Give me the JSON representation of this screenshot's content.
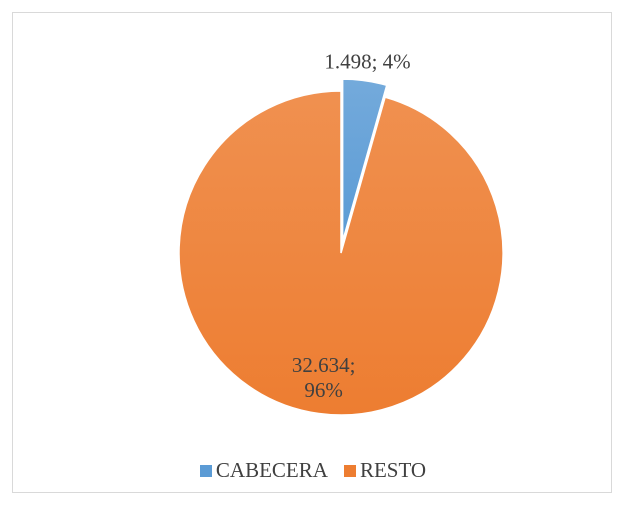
{
  "chart_data": {
    "type": "pie",
    "categories": [
      "CABECERA",
      "RESTO"
    ],
    "values": [
      1498,
      32634
    ],
    "value_labels": [
      "1.498; 4%",
      "32.634; 96%"
    ],
    "colors": [
      "#5b9bd5",
      "#ed7d31"
    ],
    "explode": [
      true,
      false
    ],
    "legend": "bottom"
  }
}
